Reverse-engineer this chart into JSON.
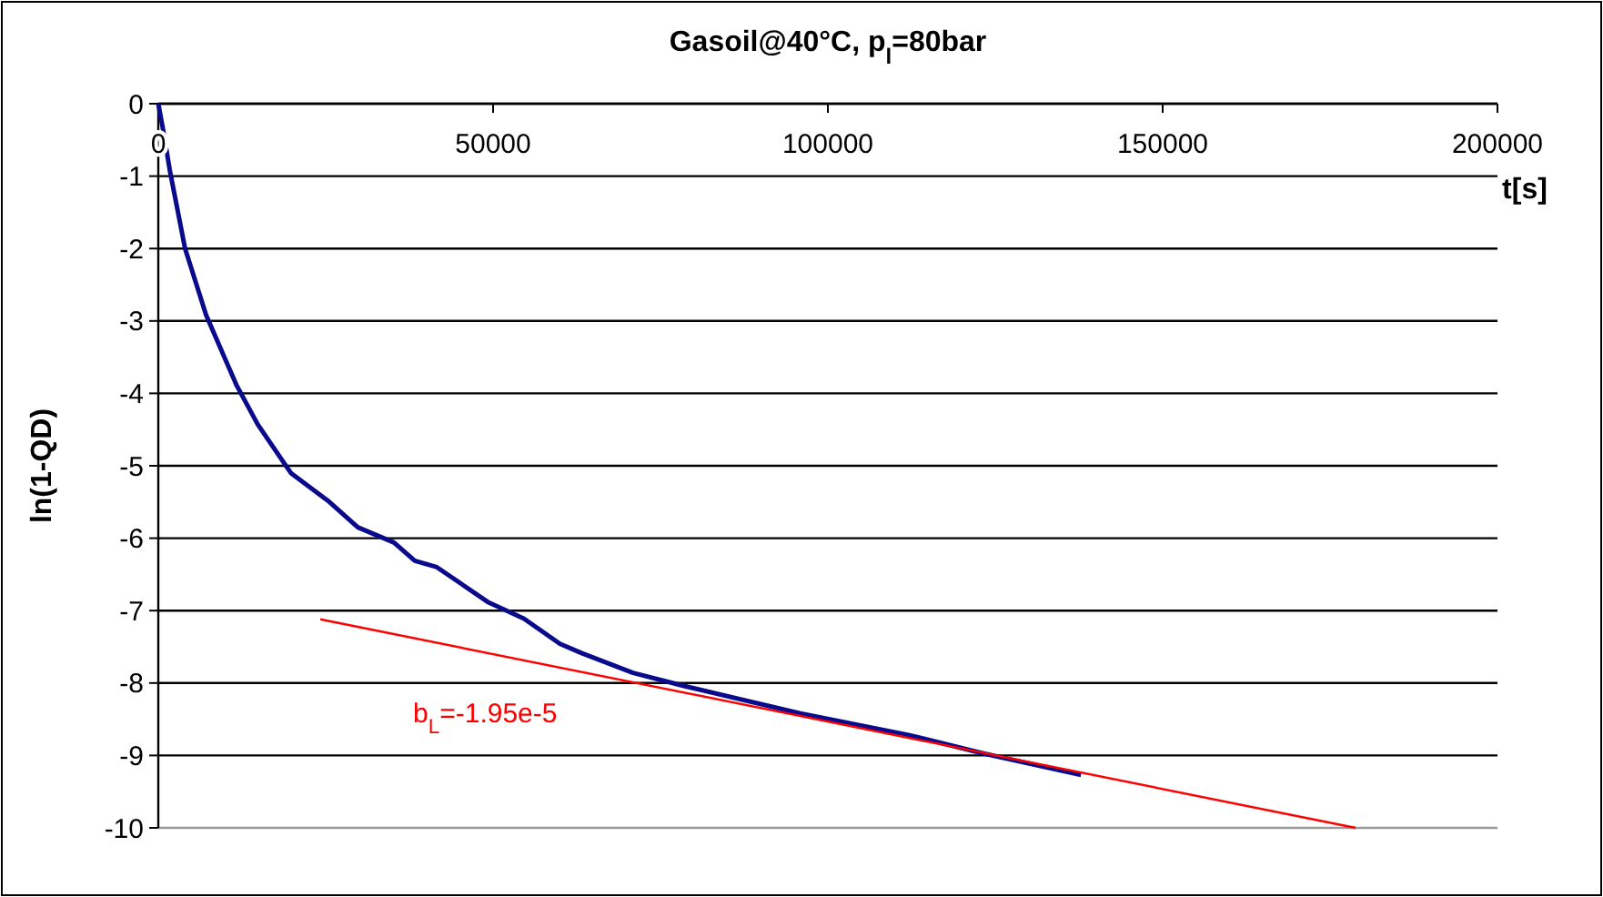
{
  "chart_data": {
    "type": "line",
    "title": "Gasoil@40°C, p$_{l}$=80bar",
    "xlabel": "t[s]",
    "ylabel": "ln(1-QD)",
    "xlim": [
      0,
      200000
    ],
    "xticks": [
      0,
      50000,
      100000,
      150000,
      200000
    ],
    "ylim": [
      -10,
      0
    ],
    "yticks": [
      0,
      -1,
      -2,
      -3,
      -4,
      -5,
      -6,
      -7,
      -8,
      -9,
      -10
    ],
    "grid": "y",
    "series": [
      {
        "color": "#0a0a8c",
        "x": [
          0,
          800,
          1700,
          4000,
          7150,
          11700,
          14860,
          19800,
          25300,
          29800,
          35200,
          38300,
          41600,
          49200,
          54600,
          60000,
          63300,
          70900,
          78500,
          95900,
          112200,
          123100,
          137800
        ],
        "values": [
          0,
          -0.4,
          -0.91,
          -2.0,
          -2.92,
          -3.89,
          -4.43,
          -5.1,
          -5.48,
          -5.85,
          -6.06,
          -6.31,
          -6.4,
          -6.88,
          -7.11,
          -7.46,
          -7.59,
          -7.86,
          -8.04,
          -8.42,
          -8.72,
          -8.97,
          -9.27
        ]
      },
      {
        "type": "line",
        "color": "#ff0000",
        "x": [
          24200,
          178800
        ],
        "values": [
          -7.12,
          -10
        ]
      }
    ],
    "annotations": [
      "b$_{L}$=-1.95e-5"
    ]
  }
}
